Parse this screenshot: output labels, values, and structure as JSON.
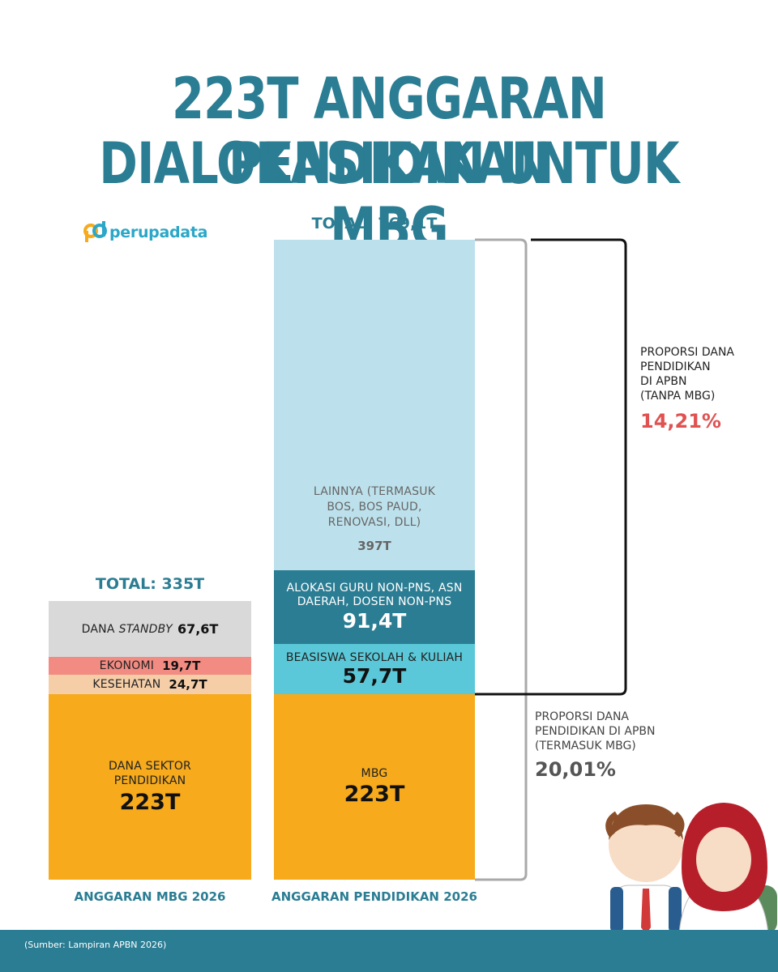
{
  "header": {
    "title_line1": "223T ANGGARAN PENDIDIKAN",
    "title_line2": "DIALOKASIKAN UNTUK MBG"
  },
  "logo": {
    "text": "perupadata"
  },
  "colors": {
    "accent": "#2b7d93",
    "orange": "#f6aa1c",
    "light_blue": "#bde1ec",
    "dark_teal": "#2b7d93",
    "cyan": "#5ac8d8",
    "grey": "#d9d9d9",
    "salmon": "#f28b82",
    "peach": "#f5cea8",
    "red_pct": "#e05252",
    "grey_pct": "#555555"
  },
  "chart_data": {
    "type": "bar",
    "stacked": true,
    "bars": [
      {
        "name": "ANGGARAN MBG 2026",
        "total_label": "TOTAL: 335T",
        "total": 335,
        "segments": [
          {
            "label": "DANA SEKTOR PENDIDIKAN",
            "value": 223,
            "value_label": "223T"
          },
          {
            "label": "KESEHATAN",
            "value": 24.7,
            "value_label": "24,7T"
          },
          {
            "label": "EKONOMI",
            "value": 19.7,
            "value_label": "19,7T"
          },
          {
            "label_prefix": "DANA",
            "label_italic": "STANDBY",
            "value": 67.6,
            "value_label": "67,6T"
          }
        ]
      },
      {
        "name": "ANGGARAN PENDIDIKAN 2026",
        "total_label": "TOTAL: 769,1T",
        "total": 769.1,
        "segments": [
          {
            "label": "MBG",
            "value": 223,
            "value_label": "223T"
          },
          {
            "label": "BEASISWA SEKOLAH & KULIAH",
            "value": 57.7,
            "value_label": "57,7T"
          },
          {
            "label_line1": "ALOKASI GURU NON-PNS, ASN",
            "label_line2": "DAERAH, DOSEN NON-PNS",
            "value": 91.4,
            "value_label": "91,4T"
          },
          {
            "label_line1": "LAINNYA (TERMASUK",
            "label_line2": "BOS, BOS PAUD,",
            "label_line3": "RENOVASI, DLL)",
            "value": 397,
            "value_label": "397T"
          }
        ]
      }
    ]
  },
  "annotations": {
    "without_mbg": {
      "line1": "PROPORSI DANA",
      "line2": "PENDIDIKAN",
      "line3": "DI APBN",
      "line4": "(TANPA MBG)",
      "value": "14,21%"
    },
    "with_mbg": {
      "line1": "PROPORSI DANA",
      "line2": "PENDIDIKAN DI APBN",
      "line3": "(TERMASUK MBG)",
      "value": "20,01%"
    }
  },
  "footer": {
    "source": "(Sumber: Lampiran APBN 2026)"
  }
}
